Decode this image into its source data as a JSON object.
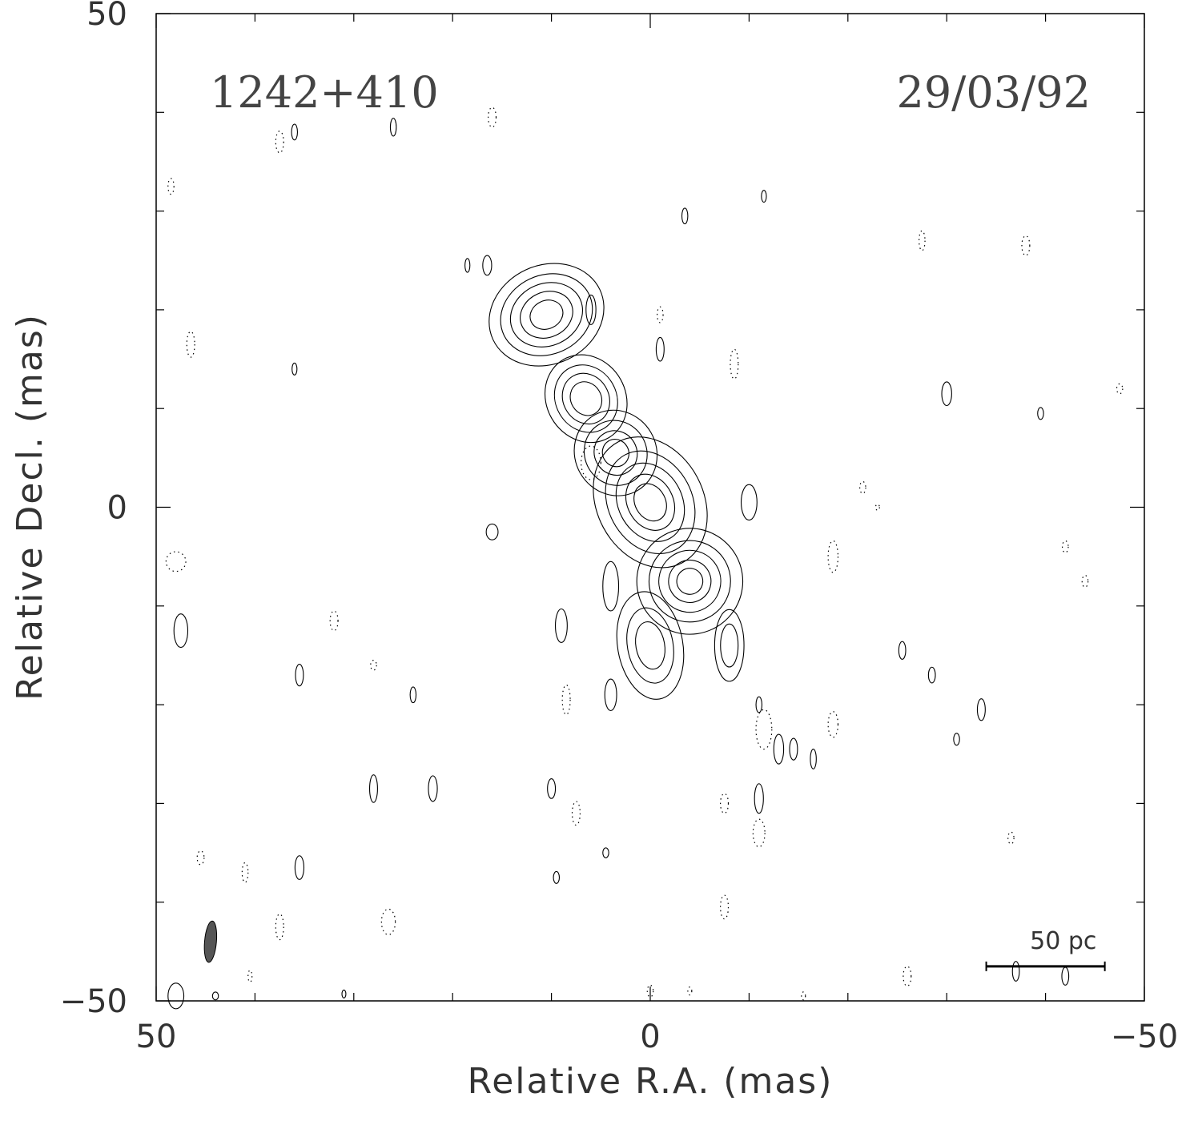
{
  "chart_data": {
    "type": "contour",
    "source_label": "1242+410",
    "date_label": "29/03/92",
    "xlabel": "Relative R.A. (mas)",
    "ylabel": "Relative Decl. (mas)",
    "xlim": [
      50,
      -50
    ],
    "ylim": [
      -50,
      50
    ],
    "x_ticks": [
      50,
      0,
      -50
    ],
    "y_ticks": [
      50,
      0,
      -50
    ],
    "x_tick_labels": [
      "50",
      "0",
      "−50"
    ],
    "y_tick_labels": [
      "50",
      "0",
      "−50"
    ],
    "x_minor_step": 10,
    "y_minor_step": 10,
    "grid": false,
    "scale_bar": {
      "label": "50 pc",
      "x_start": -34,
      "x_end": -46,
      "y": -46.5
    },
    "beam": {
      "x": 44.5,
      "y": -44,
      "major": 3.5,
      "minor": 1.0,
      "pa_deg": 5,
      "color": "#555555"
    },
    "components": [
      {
        "name": "north-east-lobe",
        "x": 10.5,
        "y": 19.5,
        "levels": [
          7,
          5.6,
          4.4,
          3.2,
          2
        ],
        "rx": 1.55,
        "ry": 1.3,
        "rot": -25
      },
      {
        "name": "jet-knot-1",
        "x": 6.5,
        "y": 11,
        "levels": [
          5.2,
          4,
          3,
          2
        ],
        "rx": 1.4,
        "ry": 1.6,
        "rot": -30
      },
      {
        "name": "jet-knot-2",
        "x": 3.5,
        "y": 5.5,
        "levels": [
          5,
          3.8,
          2.6,
          1.6
        ],
        "rx": 1.5,
        "ry": 1.6,
        "rot": -30
      },
      {
        "name": "core",
        "x": 0,
        "y": 0.5,
        "levels": [
          7,
          5.5,
          4.2,
          3,
          2
        ],
        "rx": 1.4,
        "ry": 1.8,
        "rot": -28
      },
      {
        "name": "south-west-knot",
        "x": -4,
        "y": -7.5,
        "levels": [
          6.5,
          5,
          3.8,
          2.6,
          1.6
        ],
        "rx": 1.5,
        "ry": 1.5,
        "rot": -30
      },
      {
        "name": "southern-extension",
        "x": 0,
        "y": -14,
        "levels": [
          5,
          3.5,
          2.2
        ],
        "rx": 1.2,
        "ry": 2.0,
        "rot": -10
      },
      {
        "name": "south-west-blob",
        "x": -8,
        "y": -14,
        "levels": [
          3,
          1.8
        ],
        "rx": 0.9,
        "ry": 2.2,
        "rot": 0
      }
    ],
    "positive_blobs": [
      {
        "x": 16.5,
        "y": 24.5,
        "rx": 0.45,
        "ry": 1
      },
      {
        "x": 6,
        "y": 20,
        "rx": 0.5,
        "ry": 1.5
      },
      {
        "x": -1,
        "y": 16,
        "rx": 0.4,
        "ry": 1.2
      },
      {
        "x": -10,
        "y": 0.5,
        "rx": 0.8,
        "ry": 1.8
      },
      {
        "x": 16,
        "y": -2.5,
        "rx": 0.6,
        "ry": 0.8
      },
      {
        "x": 4,
        "y": -8,
        "rx": 0.8,
        "ry": 2.5
      },
      {
        "x": 9,
        "y": -12,
        "rx": 0.6,
        "ry": 1.7
      },
      {
        "x": 4,
        "y": -19,
        "rx": 0.6,
        "ry": 1.6
      },
      {
        "x": 47.5,
        "y": -12.5,
        "rx": 0.7,
        "ry": 1.7
      },
      {
        "x": 35.5,
        "y": -17,
        "rx": 0.4,
        "ry": 1.1
      },
      {
        "x": 28,
        "y": -28.5,
        "rx": 0.4,
        "ry": 1.4
      },
      {
        "x": 35.5,
        "y": -36.5,
        "rx": 0.45,
        "ry": 1.2
      },
      {
        "x": 26,
        "y": 38.5,
        "rx": 0.3,
        "ry": 0.9
      },
      {
        "x": 36,
        "y": 38,
        "rx": 0.3,
        "ry": 0.8
      },
      {
        "x": 18.5,
        "y": 24.5,
        "rx": 0.25,
        "ry": 0.7
      },
      {
        "x": 36,
        "y": 14,
        "rx": 0.25,
        "ry": 0.6
      },
      {
        "x": -11.5,
        "y": 31.5,
        "rx": 0.25,
        "ry": 0.6
      },
      {
        "x": -3.5,
        "y": 29.5,
        "rx": 0.3,
        "ry": 0.8
      },
      {
        "x": -30,
        "y": 11.5,
        "rx": 0.5,
        "ry": 1.2
      },
      {
        "x": -39.5,
        "y": 9.5,
        "rx": 0.3,
        "ry": 0.6
      },
      {
        "x": -25.5,
        "y": -14.5,
        "rx": 0.35,
        "ry": 0.9
      },
      {
        "x": -28.5,
        "y": -17,
        "rx": 0.35,
        "ry": 0.8
      },
      {
        "x": -31,
        "y": -23.5,
        "rx": 0.3,
        "ry": 0.6
      },
      {
        "x": -13,
        "y": -24.5,
        "rx": 0.5,
        "ry": 1.5
      },
      {
        "x": -14.5,
        "y": -24.5,
        "rx": 0.4,
        "ry": 1.1
      },
      {
        "x": -16.5,
        "y": -25.5,
        "rx": 0.3,
        "ry": 1
      },
      {
        "x": -11,
        "y": -29.5,
        "rx": 0.45,
        "ry": 1.5
      },
      {
        "x": 10,
        "y": -28.5,
        "rx": 0.4,
        "ry": 1
      },
      {
        "x": 22,
        "y": -28.5,
        "rx": 0.45,
        "ry": 1.3
      },
      {
        "x": 9.5,
        "y": -37.5,
        "rx": 0.3,
        "ry": 0.6
      },
      {
        "x": 4.5,
        "y": -35,
        "rx": 0.3,
        "ry": 0.5
      },
      {
        "x": -37,
        "y": -47,
        "rx": 0.35,
        "ry": 1
      },
      {
        "x": -42,
        "y": -47.5,
        "rx": 0.35,
        "ry": 0.9
      },
      {
        "x": 48,
        "y": -49.5,
        "rx": 0.8,
        "ry": 1.3
      },
      {
        "x": 44,
        "y": -49.5,
        "rx": 0.3,
        "ry": 0.4
      },
      {
        "x": 31,
        "y": -49.3,
        "rx": 0.2,
        "ry": 0.4
      },
      {
        "x": 24,
        "y": -19,
        "rx": 0.3,
        "ry": 0.8
      },
      {
        "x": -11,
        "y": -20,
        "rx": 0.3,
        "ry": 0.8
      },
      {
        "x": -33.5,
        "y": -20.5,
        "rx": 0.4,
        "ry": 1.1
      }
    ],
    "negative_blobs": [
      {
        "x": 16,
        "y": 39.5,
        "rx": 0.4,
        "ry": 1
      },
      {
        "x": 37.5,
        "y": 37,
        "rx": 0.4,
        "ry": 1.1
      },
      {
        "x": 48.5,
        "y": 32.5,
        "rx": 0.3,
        "ry": 0.8
      },
      {
        "x": 46.5,
        "y": 16.5,
        "rx": 0.4,
        "ry": 1.3
      },
      {
        "x": 6,
        "y": 4.5,
        "rx": 1,
        "ry": 1.7
      },
      {
        "x": -1,
        "y": 19.5,
        "rx": 0.3,
        "ry": 0.8
      },
      {
        "x": -8.5,
        "y": 14.5,
        "rx": 0.4,
        "ry": 1.5
      },
      {
        "x": 48,
        "y": -5.5,
        "rx": 1,
        "ry": 1
      },
      {
        "x": 32,
        "y": -11.5,
        "rx": 0.4,
        "ry": 1
      },
      {
        "x": 28,
        "y": -16,
        "rx": 0.3,
        "ry": 0.5
      },
      {
        "x": 8.5,
        "y": -19.5,
        "rx": 0.4,
        "ry": 1.5
      },
      {
        "x": -11.5,
        "y": -22.5,
        "rx": 0.8,
        "ry": 2
      },
      {
        "x": -18.5,
        "y": -22,
        "rx": 0.5,
        "ry": 1.3
      },
      {
        "x": -18.5,
        "y": -5,
        "rx": 0.5,
        "ry": 1.6
      },
      {
        "x": -27.5,
        "y": 27,
        "rx": 0.3,
        "ry": 1
      },
      {
        "x": -38,
        "y": 26.5,
        "rx": 0.4,
        "ry": 1
      },
      {
        "x": -47.5,
        "y": 12,
        "rx": 0.3,
        "ry": 0.5
      },
      {
        "x": 45.5,
        "y": -35.5,
        "rx": 0.35,
        "ry": 0.7
      },
      {
        "x": 41,
        "y": -37,
        "rx": 0.3,
        "ry": 1
      },
      {
        "x": 37.5,
        "y": -42.5,
        "rx": 0.4,
        "ry": 1.3
      },
      {
        "x": 26.5,
        "y": -42,
        "rx": 0.7,
        "ry": 1.3
      },
      {
        "x": 40.5,
        "y": -47.5,
        "rx": 0.2,
        "ry": 0.6
      },
      {
        "x": 7.5,
        "y": -31,
        "rx": 0.4,
        "ry": 1.2
      },
      {
        "x": -7.5,
        "y": -30,
        "rx": 0.4,
        "ry": 1
      },
      {
        "x": -11,
        "y": -33,
        "rx": 0.6,
        "ry": 1.4
      },
      {
        "x": -7.5,
        "y": -40.5,
        "rx": 0.4,
        "ry": 1.2
      },
      {
        "x": -36.5,
        "y": -33.5,
        "rx": 0.3,
        "ry": 0.6
      },
      {
        "x": -26,
        "y": -47.5,
        "rx": 0.4,
        "ry": 1
      },
      {
        "x": 0,
        "y": -49,
        "rx": 0.3,
        "ry": 0.6
      },
      {
        "x": -4,
        "y": -49,
        "rx": 0.2,
        "ry": 0.4
      },
      {
        "x": -15.5,
        "y": -49.5,
        "rx": 0.2,
        "ry": 0.4
      },
      {
        "x": -21.5,
        "y": 2,
        "rx": 0.3,
        "ry": 0.6
      },
      {
        "x": -23,
        "y": 0,
        "rx": 0.2,
        "ry": 0.3
      },
      {
        "x": -44,
        "y": -7.5,
        "rx": 0.3,
        "ry": 0.6
      },
      {
        "x": -42,
        "y": -4,
        "rx": 0.3,
        "ry": 0.6
      }
    ]
  }
}
